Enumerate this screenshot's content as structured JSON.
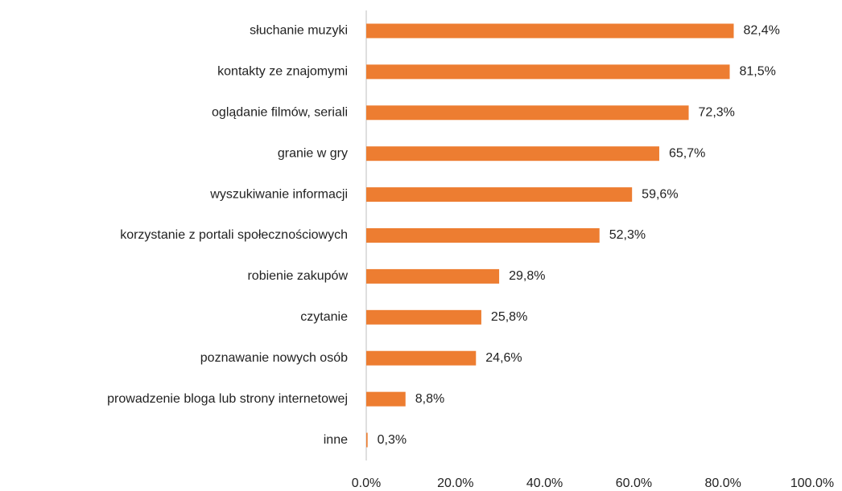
{
  "chart_data": {
    "type": "bar",
    "orientation": "horizontal",
    "categories": [
      "słuchanie muzyki",
      "kontakty ze znajomymi",
      "oglądanie filmów, seriali",
      "granie w gry",
      "wyszukiwanie informacji",
      "korzystanie z portali społecznościowych",
      "robienie zakupów",
      "czytanie",
      "poznawanie nowych osób",
      "prowadzenie bloga lub strony internetowej",
      "inne"
    ],
    "values": [
      82.4,
      81.5,
      72.3,
      65.7,
      59.6,
      52.3,
      29.8,
      25.8,
      24.6,
      8.8,
      0.3
    ],
    "value_labels": [
      "82,4%",
      "81,5%",
      "72,3%",
      "65,7%",
      "59,6%",
      "52,3%",
      "29,8%",
      "25,8%",
      "24,6%",
      "8,8%",
      "0,3%"
    ],
    "color": "#ed7d31",
    "xlim": [
      0,
      100
    ],
    "xticks": [
      {
        "value": 0,
        "label": "0.0%"
      },
      {
        "value": 20,
        "label": "20.0%"
      },
      {
        "value": 40,
        "label": "40.0%"
      },
      {
        "value": 60,
        "label": "60.0%"
      },
      {
        "value": 80,
        "label": "80.0%"
      },
      {
        "value": 100,
        "label": "100.0%"
      }
    ],
    "grid": false
  }
}
